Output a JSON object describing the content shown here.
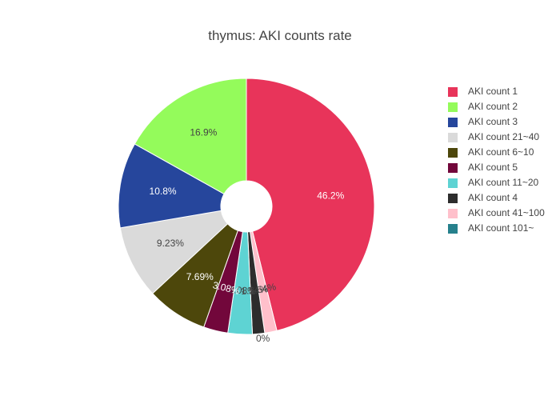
{
  "chart_data": {
    "type": "pie",
    "title": "thymus: AKI counts rate",
    "hole": true,
    "legend_position": "right",
    "slices": [
      {
        "label": "AKI count 1",
        "value": 46.2,
        "text": "46.2%",
        "color": "#e8345a",
        "text_color": "#ffffff"
      },
      {
        "label": "AKI count 41~100",
        "value": 1.54,
        "text": "1.54%",
        "color": "#ffc0cb",
        "text_color": "#444444"
      },
      {
        "label": "AKI count 4",
        "value": 1.54,
        "text": "1.54%",
        "color": "#2d2d2d",
        "text_color": "#444444"
      },
      {
        "label": "AKI count 11~20",
        "value": 3.08,
        "text": "3.08%",
        "color": "#5ed3d3",
        "text_color": "#444444"
      },
      {
        "label": "AKI count 5",
        "value": 3.08,
        "text": "3.08%",
        "color": "#72073b",
        "text_color": "#ffffff"
      },
      {
        "label": "AKI count 6~10",
        "value": 7.69,
        "text": "7.69%",
        "color": "#4d470b",
        "text_color": "#ffffff"
      },
      {
        "label": "AKI count 21~40",
        "value": 9.23,
        "text": "9.23%",
        "color": "#dadada",
        "text_color": "#444444"
      },
      {
        "label": "AKI count 3",
        "value": 10.8,
        "text": "10.8%",
        "color": "#26469c",
        "text_color": "#ffffff"
      },
      {
        "label": "AKI count 2",
        "value": 16.9,
        "text": "16.9%",
        "color": "#94fb5b",
        "text_color": "#444444"
      },
      {
        "label": "AKI count 101~",
        "value": 0,
        "text": "0%",
        "color": "#26808c",
        "text_color": "#444444"
      }
    ],
    "legend_order": [
      "AKI count 1",
      "AKI count 2",
      "AKI count 3",
      "AKI count 21~40",
      "AKI count 6~10",
      "AKI count 5",
      "AKI count 11~20",
      "AKI count 4",
      "AKI count 41~100",
      "AKI count 101~"
    ]
  }
}
